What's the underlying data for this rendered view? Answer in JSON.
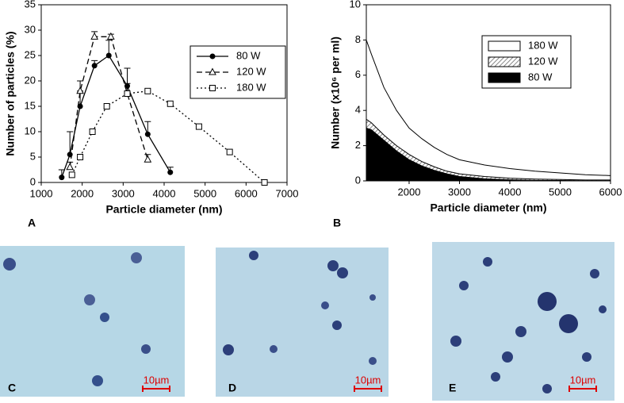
{
  "chart_data": [
    {
      "type": "line",
      "panel_label": "A",
      "xlabel": "Particle diameter (nm)",
      "ylabel": "Number of particles (%)",
      "xlim": [
        1000,
        7000
      ],
      "xticks": [
        1000,
        2000,
        3000,
        4000,
        5000,
        6000,
        7000
      ],
      "ylim": [
        0,
        35
      ],
      "yticks": [
        0,
        5,
        10,
        15,
        20,
        25,
        30,
        35
      ],
      "legend": "upper right",
      "series": [
        {
          "name": "80 W",
          "color": "#000000",
          "marker": "circle",
          "dash": "solid",
          "x": [
            1500,
            1700,
            1950,
            2300,
            2650,
            3100,
            3600,
            4150
          ],
          "values": [
            1,
            5.5,
            15,
            23,
            25,
            19,
            9.5,
            2
          ],
          "errors": [
            1.5,
            4.5,
            3,
            1,
            3,
            3.5,
            2.5,
            1
          ]
        },
        {
          "name": "120 W",
          "color": "#000000",
          "marker": "triangle",
          "dash": "dashed",
          "x": [
            1700,
            1950,
            2300,
            2700,
            3100,
            3600
          ],
          "values": [
            3,
            18,
            28.7,
            28.7,
            17.5,
            4.5
          ],
          "errors": [
            1,
            2,
            1,
            0.5,
            2,
            1
          ]
        },
        {
          "name": "180 W",
          "color": "#000000",
          "marker": "square",
          "dash": "dotted",
          "x": [
            1750,
            1950,
            2250,
            2600,
            3100,
            3600,
            4150,
            4850,
            5600,
            6450
          ],
          "values": [
            1.5,
            5,
            10,
            15,
            17.5,
            18,
            15.5,
            11,
            6,
            0
          ]
        }
      ]
    },
    {
      "type": "area",
      "panel_label": "B",
      "xlabel": "Particle diameter (nm)",
      "ylabel": "Number (x10⁶ per ml)",
      "xlim": [
        1150,
        6000
      ],
      "xticks": [
        2000,
        3000,
        4000,
        5000,
        6000
      ],
      "ylim": [
        0,
        10
      ],
      "yticks": [
        0,
        2,
        4,
        6,
        8,
        10
      ],
      "legend": "upper right",
      "x": [
        1150,
        1250,
        1500,
        1750,
        2000,
        2250,
        2500,
        2750,
        3000,
        3500,
        4000,
        4500,
        5000,
        5500,
        6000
      ],
      "series": [
        {
          "name": "180 W",
          "color": "#ffffff",
          "values": [
            8,
            7.2,
            5.3,
            4,
            3,
            2.4,
            1.9,
            1.5,
            1.2,
            0.9,
            0.7,
            0.55,
            0.45,
            0.35,
            0.3
          ]
        },
        {
          "name": "120 W",
          "color": "#aaaaaa",
          "pattern": "hatch",
          "values": [
            3.5,
            3.3,
            2.6,
            2,
            1.5,
            1.1,
            0.8,
            0.55,
            0.4,
            0.25,
            0.15,
            0.1,
            0.08,
            0.05,
            0.05
          ]
        },
        {
          "name": "80 W",
          "color": "#000000",
          "values": [
            3,
            2.9,
            2.3,
            1.7,
            1.2,
            0.85,
            0.6,
            0.4,
            0.25,
            0.12,
            0.06,
            0.03,
            0.02,
            0.01,
            0.01
          ]
        }
      ]
    }
  ],
  "images": [
    {
      "label": "C",
      "scale_bar": "10µm"
    },
    {
      "label": "D",
      "scale_bar": "10µm"
    },
    {
      "label": "E",
      "scale_bar": "10µm"
    }
  ]
}
